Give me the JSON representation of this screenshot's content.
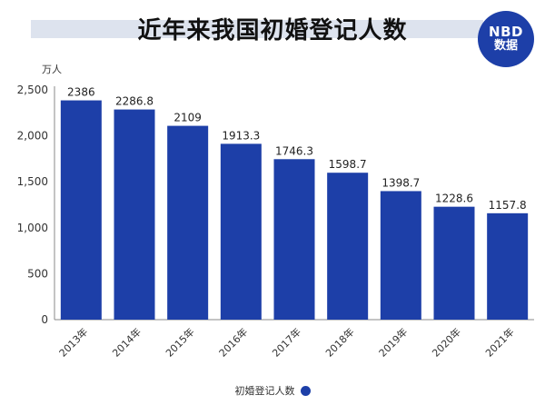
{
  "header": {
    "title": "近年来我国初婚登记人数",
    "logo_line1": "NBD",
    "logo_line2": "数据",
    "logo_color": "#1d3fa8"
  },
  "chart_data": {
    "type": "bar",
    "categories": [
      "2013年",
      "2014年",
      "2015年",
      "2016年",
      "2017年",
      "2018年",
      "2019年",
      "2020年",
      "2021年"
    ],
    "values": [
      2386,
      2286.8,
      2109,
      1913.3,
      1746.3,
      1598.7,
      1398.7,
      1228.6,
      1157.8
    ],
    "value_labels": [
      "2386",
      "2286.8",
      "2109",
      "1913.3",
      "1746.3",
      "1598.7",
      "1398.7",
      "1228.6",
      "1157.8"
    ],
    "yticks": [
      0,
      500,
      1000,
      1500,
      2000,
      2500
    ],
    "ytick_labels": [
      "0",
      "500",
      "1,000",
      "1,500",
      "2,000",
      "2,500"
    ],
    "ylim": [
      0,
      2500
    ],
    "unit_label": "万人",
    "series_name": "初婚登记人数",
    "bar_color": "#1d3fa8",
    "grid": false,
    "legend_position": "bottom"
  }
}
